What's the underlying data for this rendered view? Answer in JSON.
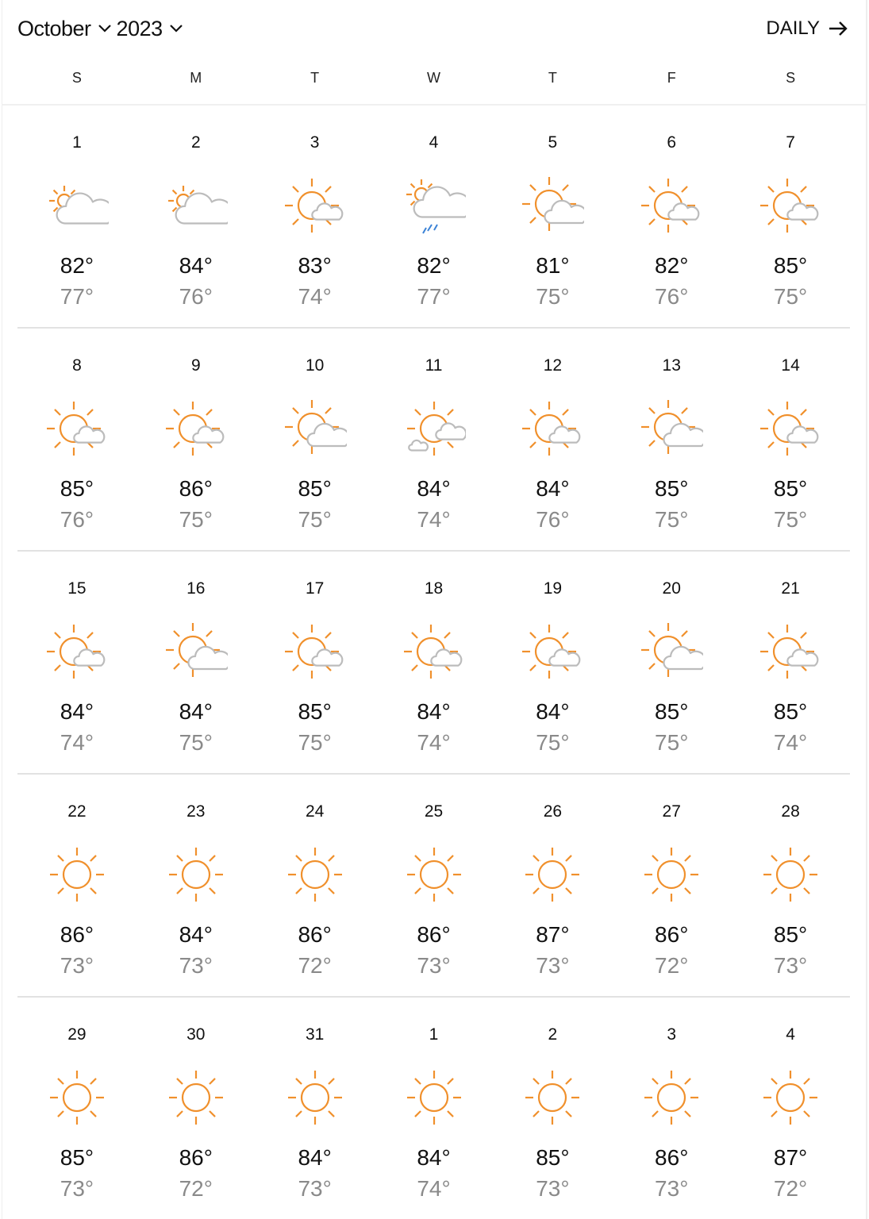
{
  "header": {
    "month": "October",
    "year": "2023",
    "view_toggle": "DAILY"
  },
  "colors": {
    "sun": "#f0902c",
    "cloud": "#bcbcbc",
    "rain": "#3b82d6"
  },
  "weekdays": [
    "S",
    "M",
    "T",
    "W",
    "T",
    "F",
    "S"
  ],
  "weeks": [
    [
      {
        "date": "1",
        "icon": "mostly-cloudy",
        "hi": "82°",
        "lo": "77°"
      },
      {
        "date": "2",
        "icon": "mostly-cloudy",
        "hi": "84°",
        "lo": "76°"
      },
      {
        "date": "3",
        "icon": "partly-sunny",
        "hi": "83°",
        "lo": "74°"
      },
      {
        "date": "4",
        "icon": "rain",
        "hi": "82°",
        "lo": "77°"
      },
      {
        "date": "5",
        "icon": "partly-cloudy",
        "hi": "81°",
        "lo": "75°"
      },
      {
        "date": "6",
        "icon": "partly-sunny",
        "hi": "82°",
        "lo": "76°"
      },
      {
        "date": "7",
        "icon": "partly-sunny",
        "hi": "85°",
        "lo": "75°"
      }
    ],
    [
      {
        "date": "8",
        "icon": "partly-sunny",
        "hi": "85°",
        "lo": "76°"
      },
      {
        "date": "9",
        "icon": "partly-sunny",
        "hi": "86°",
        "lo": "75°"
      },
      {
        "date": "10",
        "icon": "partly-cloudy",
        "hi": "85°",
        "lo": "75°"
      },
      {
        "date": "11",
        "icon": "partly-sunny-two-clouds",
        "hi": "84°",
        "lo": "74°"
      },
      {
        "date": "12",
        "icon": "partly-sunny",
        "hi": "84°",
        "lo": "76°"
      },
      {
        "date": "13",
        "icon": "partly-cloudy",
        "hi": "85°",
        "lo": "75°"
      },
      {
        "date": "14",
        "icon": "partly-sunny",
        "hi": "85°",
        "lo": "75°"
      }
    ],
    [
      {
        "date": "15",
        "icon": "partly-sunny",
        "hi": "84°",
        "lo": "74°"
      },
      {
        "date": "16",
        "icon": "partly-cloudy",
        "hi": "84°",
        "lo": "75°"
      },
      {
        "date": "17",
        "icon": "partly-sunny",
        "hi": "85°",
        "lo": "75°"
      },
      {
        "date": "18",
        "icon": "partly-sunny",
        "hi": "84°",
        "lo": "74°"
      },
      {
        "date": "19",
        "icon": "partly-sunny",
        "hi": "84°",
        "lo": "75°"
      },
      {
        "date": "20",
        "icon": "partly-cloudy",
        "hi": "85°",
        "lo": "75°"
      },
      {
        "date": "21",
        "icon": "partly-sunny",
        "hi": "85°",
        "lo": "74°"
      }
    ],
    [
      {
        "date": "22",
        "icon": "sunny",
        "hi": "86°",
        "lo": "73°"
      },
      {
        "date": "23",
        "icon": "sunny",
        "hi": "84°",
        "lo": "73°"
      },
      {
        "date": "24",
        "icon": "sunny",
        "hi": "86°",
        "lo": "72°"
      },
      {
        "date": "25",
        "icon": "sunny",
        "hi": "86°",
        "lo": "73°"
      },
      {
        "date": "26",
        "icon": "sunny",
        "hi": "87°",
        "lo": "73°"
      },
      {
        "date": "27",
        "icon": "sunny",
        "hi": "86°",
        "lo": "72°"
      },
      {
        "date": "28",
        "icon": "sunny",
        "hi": "85°",
        "lo": "73°"
      }
    ],
    [
      {
        "date": "29",
        "icon": "sunny",
        "hi": "85°",
        "lo": "73°"
      },
      {
        "date": "30",
        "icon": "sunny",
        "hi": "86°",
        "lo": "72°"
      },
      {
        "date": "31",
        "icon": "sunny",
        "hi": "84°",
        "lo": "73°"
      },
      {
        "date": "1",
        "icon": "sunny",
        "hi": "84°",
        "lo": "74°"
      },
      {
        "date": "2",
        "icon": "sunny",
        "hi": "85°",
        "lo": "73°"
      },
      {
        "date": "3",
        "icon": "sunny",
        "hi": "86°",
        "lo": "73°"
      },
      {
        "date": "4",
        "icon": "sunny",
        "hi": "87°",
        "lo": "72°"
      }
    ]
  ]
}
